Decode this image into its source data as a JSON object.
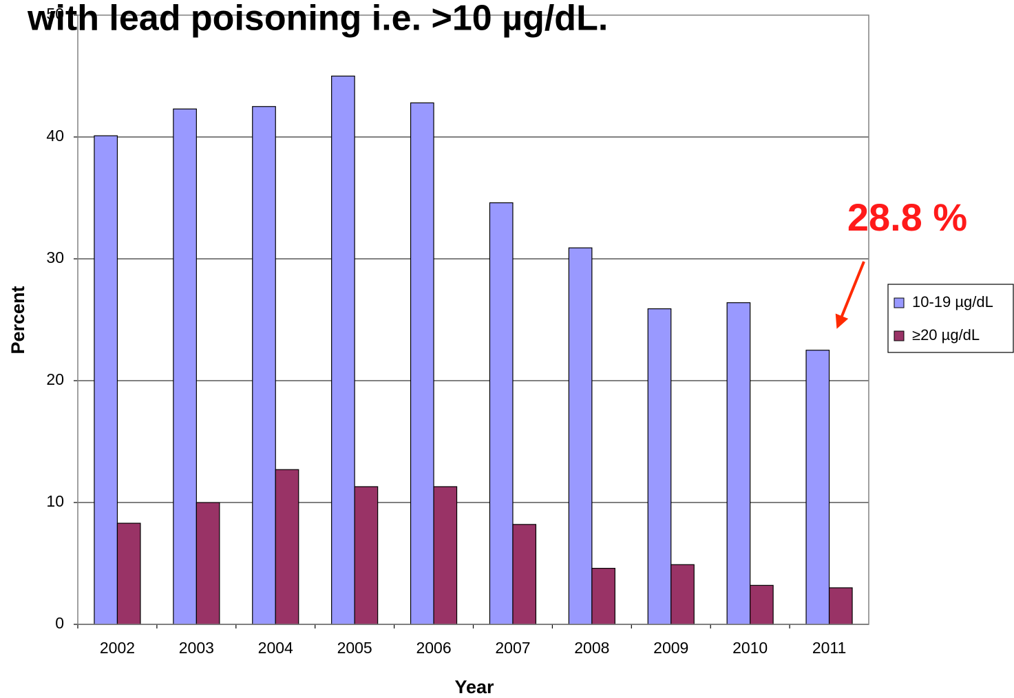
{
  "chart_data": {
    "type": "bar",
    "title": "with lead poisoning i.e. >10 µg/dL.",
    "x_label": "Year",
    "y_label": "Percent",
    "annotation": "28.8 %",
    "categories": [
      "2002",
      "2003",
      "2004",
      "2005",
      "2006",
      "2007",
      "2008",
      "2009",
      "2010",
      "2011"
    ],
    "series": [
      {
        "name": "10-19 µg/dL",
        "color": "#9999ff",
        "values": [
          40.1,
          42.3,
          42.5,
          45.0,
          42.8,
          34.6,
          30.9,
          25.9,
          26.4,
          22.5
        ]
      },
      {
        "name": "≥20 µg/dL",
        "color": "#993366",
        "values": [
          8.3,
          10.0,
          12.7,
          11.3,
          11.3,
          8.2,
          4.6,
          4.9,
          3.2,
          3.0
        ]
      }
    ],
    "ylim": [
      0,
      50
    ],
    "yticks": [
      0,
      10,
      20,
      30,
      40,
      50
    ],
    "grid": true,
    "legend": "right"
  }
}
